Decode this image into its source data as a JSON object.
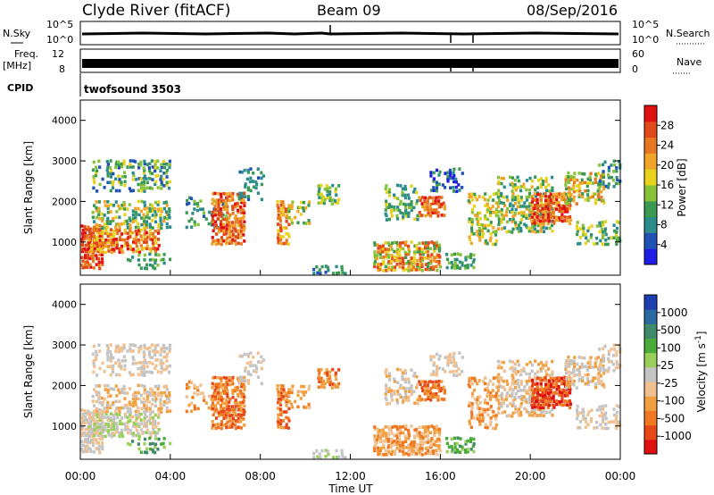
{
  "header": {
    "title": "Clyde River (fitACF)",
    "beam": "Beam 09",
    "date": "08/Sep/2016"
  },
  "status_panels": {
    "nsky_label": "N.Sky",
    "nsky_ticks": [
      "10^5",
      "10^0"
    ],
    "nsearch_label": "N.Search",
    "nsearch_ticks": [
      "10^5",
      "10^0"
    ],
    "freq_label_1": "Freq.",
    "freq_label_2": "[MHz]",
    "freq_ticks": [
      "12",
      "8"
    ],
    "nave_label": "Nave",
    "nave_ticks": [
      "60",
      "0"
    ],
    "cpid_label": "CPID",
    "cpid_value": "twofsound 3503"
  },
  "chart_data": [
    {
      "type": "heatmap",
      "name": "power-panel",
      "xlabel": "Time UT",
      "ylabel": "Slant Range [km]",
      "x_ticks": [
        "00:00",
        "04:00",
        "08:00",
        "12:00",
        "16:00",
        "20:00",
        "00:00"
      ],
      "y_ticks": [
        1000,
        2000,
        3000,
        4000
      ],
      "ylim": [
        180,
        4500
      ],
      "colorbar_label": "Power [dB]",
      "colorbar_ticks": [
        4,
        8,
        12,
        16,
        20,
        24,
        28
      ],
      "colors": [
        "#1e1ee6",
        "#1f51b4",
        "#2c8c8c",
        "#3a9a52",
        "#88c23a",
        "#e8d21e",
        "#f0a428",
        "#e87820",
        "#e04a18",
        "#e01010"
      ]
    },
    {
      "type": "heatmap",
      "name": "velocity-panel",
      "xlabel": "Time UT",
      "ylabel": "Slant Range [km]",
      "x_ticks": [
        "00:00",
        "04:00",
        "08:00",
        "12:00",
        "16:00",
        "20:00",
        "00:00"
      ],
      "y_ticks": [
        1000,
        2000,
        3000,
        4000
      ],
      "ylim": [
        180,
        4500
      ],
      "colorbar_label": "Velocity [m s^-1]",
      "colorbar_ticks": [
        "1000",
        "500",
        "100",
        "25",
        "-25",
        "-100",
        "-500",
        "-1000"
      ],
      "colors": [
        "#1e3fb0",
        "#2a6aa0",
        "#3f8a6a",
        "#4aaa3a",
        "#9ad05a",
        "#c4c4c4",
        "#f0c090",
        "#f0a040",
        "#f07820",
        "#e84818",
        "#e01010"
      ]
    }
  ]
}
